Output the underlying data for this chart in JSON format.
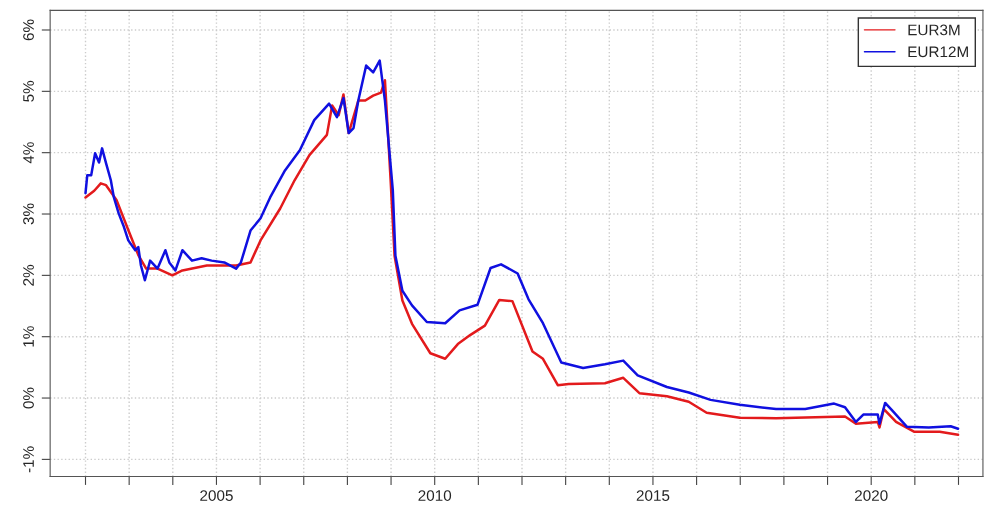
{
  "chart_data": {
    "type": "line",
    "xlim": [
      2001.19,
      2022.56
    ],
    "ylim": [
      -1.28,
      6.32
    ],
    "xticks": [
      {
        "value": 2002,
        "label": null
      },
      {
        "value": 2003,
        "label": null
      },
      {
        "value": 2004,
        "label": null
      },
      2005,
      {
        "value": 2006,
        "label": null
      },
      {
        "value": 2007,
        "label": null
      },
      {
        "value": 2008,
        "label": null
      },
      {
        "value": 2009,
        "label": null
      },
      2010,
      {
        "value": 2011,
        "label": null
      },
      {
        "value": 2012,
        "label": null
      },
      {
        "value": 2013,
        "label": null
      },
      {
        "value": 2014,
        "label": null
      },
      2015,
      {
        "value": 2016,
        "label": null
      },
      {
        "value": 2017,
        "label": null
      },
      {
        "value": 2018,
        "label": null
      },
      {
        "value": 2019,
        "label": null
      },
      2020,
      {
        "value": 2021,
        "label": null
      },
      {
        "value": 2022,
        "label": null
      }
    ],
    "yticks": [
      {
        "value": -1,
        "label": "-1%"
      },
      {
        "value": 0,
        "label": "0%"
      },
      {
        "value": 1,
        "label": "1%"
      },
      {
        "value": 2,
        "label": "2%"
      },
      {
        "value": 3,
        "label": "3%"
      },
      {
        "value": 4,
        "label": "4%"
      },
      {
        "value": 5,
        "label": "5%"
      },
      {
        "value": 6,
        "label": "6%"
      }
    ],
    "grid": true,
    "legend": "top right",
    "line_style": "solid",
    "marker": "none",
    "series": [
      {
        "name": "EUR3M",
        "color": "#e31a1c",
        "x": [
          2002.0,
          2002.2,
          2002.35,
          2002.47,
          2002.71,
          2002.98,
          2003.21,
          2003.39,
          2003.65,
          2003.99,
          2004.22,
          2004.78,
          2005.45,
          2005.78,
          2006.01,
          2006.46,
          2006.79,
          2007.13,
          2007.53,
          2007.65,
          2007.8,
          2007.91,
          2008.03,
          2008.25,
          2008.41,
          2008.59,
          2008.77,
          2008.86,
          2008.99,
          2009.08,
          2009.26,
          2009.48,
          2009.9,
          2010.24,
          2010.53,
          2010.82,
          2011.15,
          2011.48,
          2011.78,
          2012.24,
          2012.48,
          2012.82,
          2013.07,
          2013.9,
          2014.32,
          2014.69,
          2015.32,
          2015.82,
          2016.23,
          2016.99,
          2017.82,
          2019.4,
          2019.65,
          2020.15,
          2020.19,
          2020.29,
          2020.57,
          2020.99,
          2021.57,
          2021.99
        ],
        "values": [
          3.27,
          3.38,
          3.5,
          3.47,
          3.23,
          2.74,
          2.33,
          2.11,
          2.11,
          2.0,
          2.08,
          2.16,
          2.16,
          2.21,
          2.57,
          3.09,
          3.55,
          3.96,
          4.29,
          4.77,
          4.61,
          4.95,
          4.32,
          4.85,
          4.85,
          4.93,
          4.98,
          5.18,
          3.55,
          2.32,
          1.59,
          1.21,
          0.73,
          0.64,
          0.88,
          1.03,
          1.18,
          1.6,
          1.58,
          0.76,
          0.64,
          0.21,
          0.23,
          0.24,
          0.33,
          0.08,
          0.03,
          -0.06,
          -0.24,
          -0.32,
          -0.33,
          -0.3,
          -0.42,
          -0.39,
          -0.48,
          -0.18,
          -0.39,
          -0.55,
          -0.55,
          -0.6
        ]
      },
      {
        "name": "EUR12M",
        "color": "#1010e0",
        "x": [
          2002.0,
          2002.04,
          2002.13,
          2002.22,
          2002.31,
          2002.38,
          2002.47,
          2002.58,
          2002.65,
          2002.76,
          2002.87,
          2002.98,
          2003.14,
          2003.21,
          2003.27,
          2003.36,
          2003.48,
          2003.65,
          2003.83,
          2003.92,
          2004.06,
          2004.22,
          2004.44,
          2004.66,
          2004.89,
          2005.18,
          2005.45,
          2005.56,
          2005.78,
          2006.01,
          2006.23,
          2006.57,
          2006.91,
          2007.24,
          2007.58,
          2007.76,
          2007.91,
          2008.03,
          2008.14,
          2008.25,
          2008.43,
          2008.59,
          2008.74,
          2008.86,
          2009.04,
          2009.1,
          2009.26,
          2009.48,
          2009.82,
          2010.24,
          2010.57,
          2010.98,
          2011.28,
          2011.52,
          2011.9,
          2012.15,
          2012.48,
          2012.9,
          2013.4,
          2013.9,
          2014.32,
          2014.65,
          2015.32,
          2015.82,
          2016.32,
          2016.99,
          2017.82,
          2018.49,
          2019.15,
          2019.4,
          2019.65,
          2019.82,
          2020.15,
          2020.19,
          2020.32,
          2020.49,
          2020.82,
          2021.32,
          2021.82,
          2021.99
        ],
        "values": [
          3.34,
          3.63,
          3.63,
          3.99,
          3.84,
          4.07,
          3.83,
          3.55,
          3.27,
          3.01,
          2.81,
          2.57,
          2.41,
          2.46,
          2.16,
          1.92,
          2.24,
          2.11,
          2.41,
          2.21,
          2.08,
          2.41,
          2.24,
          2.28,
          2.24,
          2.21,
          2.11,
          2.21,
          2.73,
          2.93,
          3.27,
          3.71,
          4.04,
          4.53,
          4.8,
          4.58,
          4.89,
          4.32,
          4.4,
          4.85,
          5.42,
          5.31,
          5.5,
          4.85,
          3.39,
          2.32,
          1.75,
          1.51,
          1.24,
          1.22,
          1.43,
          1.52,
          2.12,
          2.18,
          2.03,
          1.61,
          1.22,
          0.58,
          0.49,
          0.55,
          0.61,
          0.37,
          0.18,
          0.09,
          -0.03,
          -0.11,
          -0.18,
          -0.18,
          -0.09,
          -0.15,
          -0.39,
          -0.27,
          -0.27,
          -0.42,
          -0.08,
          -0.21,
          -0.47,
          -0.48,
          -0.46,
          -0.5
        ]
      }
    ]
  }
}
